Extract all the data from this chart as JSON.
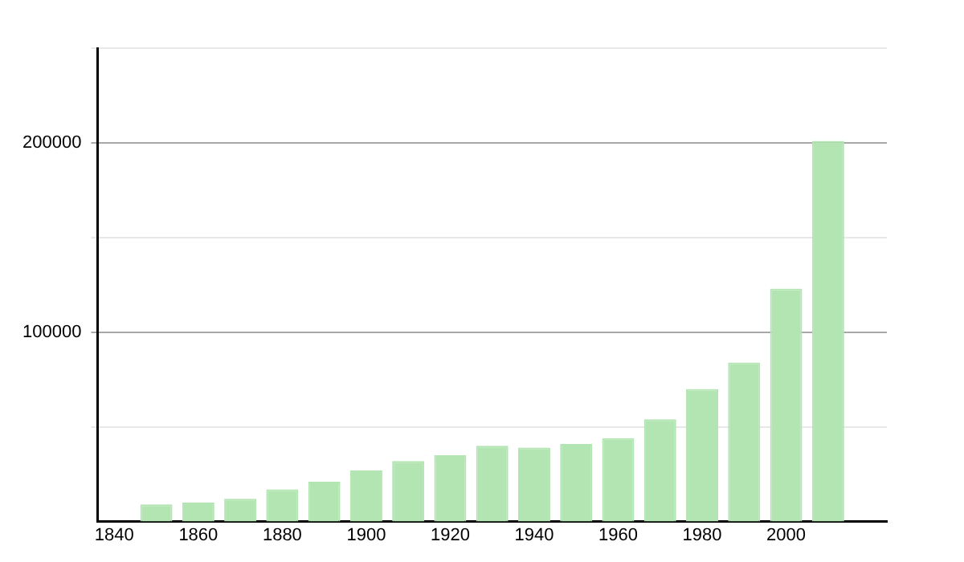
{
  "chart_data": {
    "type": "bar",
    "x": [
      1850,
      1860,
      1870,
      1880,
      1890,
      1900,
      1910,
      1920,
      1930,
      1940,
      1950,
      1960,
      1970,
      1980,
      1990,
      2000,
      2010
    ],
    "values": [
      9000,
      10000,
      12000,
      17000,
      21000,
      27000,
      32000,
      35000,
      40000,
      39000,
      41000,
      44000,
      54000,
      70000,
      84000,
      123000,
      201000
    ],
    "color": "#b3e5b3",
    "xlim": [
      1836,
      2024
    ],
    "xticks": [
      1840,
      1860,
      1880,
      1900,
      1920,
      1940,
      1960,
      1980,
      2000
    ],
    "ylim": [
      0,
      250000
    ],
    "yticks": [
      {
        "value": 50000,
        "label": null
      },
      100000,
      {
        "value": 150000,
        "label": null
      },
      200000,
      {
        "value": 250000,
        "label": null
      }
    ],
    "grid": "y",
    "legend": false
  }
}
